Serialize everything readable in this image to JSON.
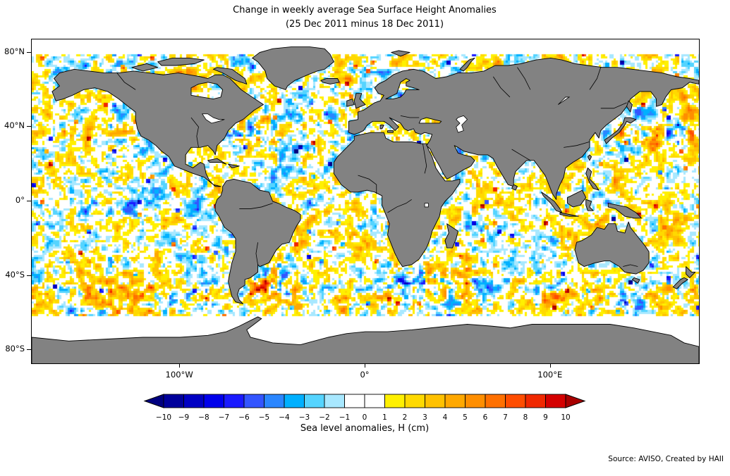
{
  "title": {
    "line1": "Change in weekly average Sea Surface Height Anomalies",
    "line2": "(25 Dec 2011 minus 18 Dec 2011)"
  },
  "axes": {
    "y_ticks": [
      {
        "label": "80°N",
        "lat": 80
      },
      {
        "label": "40°N",
        "lat": 40
      },
      {
        "label": "0°",
        "lat": 0
      },
      {
        "label": "40°S",
        "lat": -40
      },
      {
        "label": "80°S",
        "lat": -80
      }
    ],
    "x_ticks": [
      {
        "label": "100°W",
        "lon": -100
      },
      {
        "label": "0°",
        "lon": 0
      },
      {
        "label": "100°E",
        "lon": 100
      }
    ]
  },
  "map": {
    "land_color": "#828282",
    "coast_color": "#000000",
    "lake_fill": "#ffffff",
    "no_data_color": "#ffffff"
  },
  "colorbar": {
    "label": "Sea level anomalies, H (cm)",
    "tick_labels": [
      "−10",
      "−9",
      "−8",
      "−7",
      "−6",
      "−5",
      "−4",
      "−3",
      "−2",
      "−1",
      "0",
      "1",
      "2",
      "3",
      "4",
      "5",
      "6",
      "7",
      "8",
      "9",
      "10"
    ],
    "segment_colors": [
      "#00009b",
      "#0000c3",
      "#0000eb",
      "#1a1aff",
      "#3355ff",
      "#2a86ff",
      "#00b0ff",
      "#55d4ff",
      "#a8e8ff",
      "#ffffff",
      "#ffffff",
      "#fff000",
      "#ffd900",
      "#ffc100",
      "#ffa800",
      "#ff8e00",
      "#ff7000",
      "#ff4d00",
      "#f02800",
      "#d40000"
    ],
    "arrow_left_color": "#000080",
    "arrow_right_color": "#a80000",
    "outline_color": "#000000"
  },
  "source": {
    "text": "Source: AVISO, Created by HAII"
  },
  "chart_data": {
    "type": "heatmap",
    "title": "Change in weekly average Sea Surface Height Anomalies",
    "subtitle": "(25 Dec 2011 minus 18 Dec 2011)",
    "variable": "Sea level anomalies, H (cm)",
    "projection": "equirectangular world map",
    "domain": {
      "lon_range_deg": [
        -180,
        180
      ],
      "lat_range_deg": [
        -87,
        87
      ]
    },
    "x_axis": {
      "tick_labels": [
        "100°W",
        "0°",
        "100°E"
      ],
      "tick_values_deg": [
        -100,
        0,
        100
      ]
    },
    "y_axis": {
      "tick_labels": [
        "80°N",
        "40°N",
        "0°",
        "40°S",
        "80°S"
      ],
      "tick_values_deg": [
        80,
        40,
        0,
        -40,
        -80
      ]
    },
    "color_scale": {
      "min": -10,
      "max": 10,
      "step_cm": 1,
      "units": "cm",
      "extend": "both",
      "tick_values": [
        -10,
        -9,
        -8,
        -7,
        -6,
        -5,
        -4,
        -3,
        -2,
        -1,
        0,
        1,
        2,
        3,
        4,
        5,
        6,
        7,
        8,
        9,
        10
      ],
      "zero_band_color": "white",
      "negative_colors": "cyan to dark blue",
      "positive_colors": "yellow to dark red"
    },
    "field_description": "Mottled ocean field of one-week change in SSH anomalies, mostly within ±3 cm (pale yellow / cyan speckle) with scattered ±4–10 cm eddies; strongest signals in western boundary currents (Gulf Stream, Kuroshio, Agulhas, Brazil–Malvinas), the Southern Ocean and equatorial Pacific; land masked gray; no data poleward of ~80°N and ~62°S (white bands)",
    "legend_position": "bottom",
    "source": "Source: AVISO, Created by HAII"
  }
}
